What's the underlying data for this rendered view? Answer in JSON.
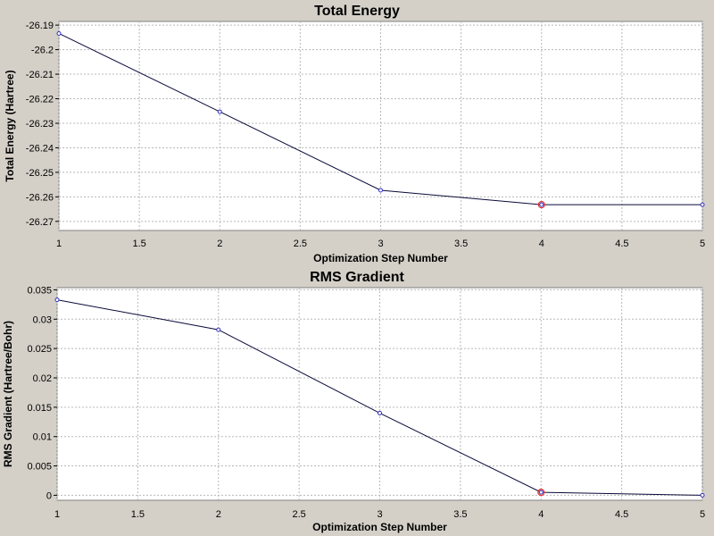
{
  "chart_data": [
    {
      "type": "line",
      "title": "Total Energy",
      "xlabel": "Optimization Step Number",
      "ylabel": "Total Energy (Hartree)",
      "x": [
        1,
        2,
        3,
        4,
        5
      ],
      "series": [
        {
          "values": [
            -26.1934,
            -26.2253,
            -26.2573,
            -26.2632,
            -26.2632
          ]
        }
      ],
      "highlight_x": 4,
      "xlim": [
        1,
        5
      ],
      "ylim": [
        -26.2737,
        -26.1885
      ],
      "xticks": [
        1,
        1.5,
        2,
        2.5,
        3,
        3.5,
        4,
        4.5,
        5
      ],
      "xtick_labels": [
        "1",
        "1.5",
        "2",
        "2.5",
        "3",
        "3.5",
        "4",
        "4.5",
        "5"
      ],
      "yticks": [
        -26.19,
        -26.2,
        -26.21,
        -26.22,
        -26.23,
        -26.24,
        -26.25,
        -26.26,
        -26.27
      ],
      "ytick_labels": [
        "-26.19",
        "-26.2",
        "-26.21",
        "-26.22",
        "-26.23",
        "-26.24",
        "-26.25",
        "-26.26",
        "-26.27"
      ],
      "grid": true,
      "colors": {
        "line": "#0a0a3a",
        "marker": "#3030c0",
        "highlight": "#e03030",
        "plot_bg": "#ffffff",
        "grid": "#b8b8b8"
      }
    },
    {
      "type": "line",
      "title": "RMS Gradient",
      "xlabel": "Optimization Step Number",
      "ylabel": "RMS Gradient (Hartree/Bohr)",
      "x": [
        1,
        2,
        3,
        4,
        5
      ],
      "series": [
        {
          "values": [
            0.0333,
            0.0282,
            0.014,
            0.0005,
            0.0
          ]
        }
      ],
      "highlight_x": 4,
      "xlim": [
        1,
        5
      ],
      "ylim": [
        -0.00085,
        0.03537
      ],
      "xticks": [
        1,
        1.5,
        2,
        2.5,
        3,
        3.5,
        4,
        4.5,
        5
      ],
      "xtick_labels": [
        "1",
        "1.5",
        "2",
        "2.5",
        "3",
        "3.5",
        "4",
        "4.5",
        "5"
      ],
      "yticks": [
        0,
        0.005,
        0.01,
        0.015,
        0.02,
        0.025,
        0.03,
        0.035
      ],
      "ytick_labels": [
        "0",
        "0.005",
        "0.01",
        "0.015",
        "0.02",
        "0.025",
        "0.03",
        "0.035"
      ],
      "grid": true,
      "colors": {
        "line": "#0a0a3a",
        "marker": "#3030c0",
        "highlight": "#e03030",
        "plot_bg": "#ffffff",
        "grid": "#b8b8b8"
      }
    }
  ]
}
